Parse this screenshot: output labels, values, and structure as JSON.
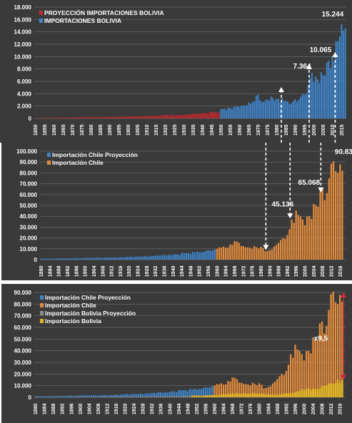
{
  "colors": {
    "background": "#3a3a3a",
    "grid": "#6d6d6d",
    "text": "#ffffff",
    "proyeccion_bolivia": "#c0282d",
    "importaciones_bolivia": "#3f83c8",
    "proyeccion_chile": "#3f83c8",
    "importacion_chile": "#e08a3c",
    "proyeccion_bolivia_p3": "#8c8c8c",
    "importacion_bolivia_p3": "#e3b42a",
    "range_arrow": "#d22a3e"
  },
  "chart_data": [
    {
      "type": "bar",
      "legend_position": "top-left",
      "grid": true,
      "x_range": [
        1850,
        2017
      ],
      "ylim": [
        0,
        18000
      ],
      "y_ticks": [
        "0",
        "2.000",
        "4.000",
        "6.000",
        "8.000",
        "10.000",
        "12.000",
        "14.000",
        "16.000",
        "18.000"
      ],
      "x_ticks": [
        "1850",
        "1855",
        "1860",
        "1865",
        "1870",
        "1875",
        "1880",
        "1885",
        "1890",
        "1895",
        "1900",
        "1905",
        "1910",
        "1915",
        "1920",
        "1925",
        "1930",
        "1935",
        "1940",
        "1945",
        "1950",
        "1955",
        "1960",
        "1965",
        "1970",
        "1975",
        "1980",
        "1985",
        "1990",
        "1995",
        "2000",
        "2005",
        "2010",
        "2015"
      ],
      "series": [
        {
          "name": "PROYECCIÓN IMPORTACIONES BOLIVIA",
          "color_key": "proyeccion_bolivia",
          "points": [
            [
              1850,
              40
            ],
            [
              1900,
              300
            ],
            [
              1930,
              600
            ],
            [
              1949,
              1050
            ]
          ]
        },
        {
          "name": "IMPORTACIONES BOLIVIA",
          "color_key": "importaciones_bolivia",
          "points": [
            [
              1950,
              1500
            ],
            [
              1955,
              1650
            ],
            [
              1960,
              1800
            ],
            [
              1965,
              2600
            ],
            [
              1970,
              3800
            ],
            [
              1972,
              2700
            ],
            [
              1975,
              3100
            ],
            [
              1978,
              3300
            ],
            [
              1980,
              3200
            ],
            [
              1985,
              2900
            ],
            [
              1987,
              2300
            ],
            [
              1990,
              3100
            ],
            [
              1995,
              3800
            ],
            [
              1999,
              7364
            ],
            [
              2002,
              6300
            ],
            [
              2005,
              7000
            ],
            [
              2008,
              9300
            ],
            [
              2010,
              10065
            ],
            [
              2013,
              12500
            ],
            [
              2015,
              15244
            ],
            [
              2016,
              14200
            ],
            [
              2017,
              14600
            ]
          ]
        }
      ],
      "annotations": [
        {
          "text": "15.244",
          "x": 2015,
          "y": 15244
        },
        {
          "text": "10.065",
          "x": 2010,
          "y": 10065
        },
        {
          "text": "7.364",
          "x": 1999,
          "y": 7364
        }
      ],
      "arrows_up_at": [
        1983,
        1998,
        2012
      ]
    },
    {
      "type": "bar",
      "legend_position": "top-left",
      "grid": true,
      "x_range": [
        1880,
        2018
      ],
      "ylim": [
        0,
        100000
      ],
      "y_ticks": [
        "0",
        "10.000",
        "20.000",
        "30.000",
        "40.000",
        "50.000",
        "60.000",
        "70.000",
        "80.000",
        "90.000",
        "100.000"
      ],
      "x_ticks": [
        "1880",
        "1884",
        "1888",
        "1892",
        "1896",
        "1900",
        "1904",
        "1908",
        "1912",
        "1916",
        "1920",
        "1924",
        "1928",
        "1932",
        "1936",
        "1940",
        "1944",
        "1948",
        "1952",
        "1956",
        "1960",
        "1964",
        "1968",
        "1972",
        "1976",
        "1980",
        "1984",
        "1988",
        "1992",
        "1996",
        "2000",
        "2004",
        "2008",
        "2012",
        "2016"
      ],
      "series": [
        {
          "name": "Importación Chile Proyección",
          "color_key": "proyeccion_chile",
          "points": [
            [
              1880,
              800
            ],
            [
              1900,
              1500
            ],
            [
              1920,
              2500
            ],
            [
              1940,
              4500
            ],
            [
              1955,
              8000
            ],
            [
              1959,
              9500
            ]
          ]
        },
        {
          "name": "Importación Chile",
          "color_key": "importacion_chile",
          "points": [
            [
              1960,
              10000
            ],
            [
              1963,
              12000
            ],
            [
              1966,
              14000
            ],
            [
              1968,
              17000
            ],
            [
              1970,
              15500
            ],
            [
              1972,
              12500
            ],
            [
              1975,
              11000
            ],
            [
              1980,
              12000
            ],
            [
              1983,
              8000
            ],
            [
              1986,
              12000
            ],
            [
              1990,
              20000
            ],
            [
              1993,
              28000
            ],
            [
              1996,
              45136
            ],
            [
              1999,
              37000
            ],
            [
              2002,
              40000
            ],
            [
              2005,
              50000
            ],
            [
              2008,
              65068
            ],
            [
              2009,
              55000
            ],
            [
              2011,
              75000
            ],
            [
              2013,
              90834
            ],
            [
              2015,
              80000
            ],
            [
              2017,
              82000
            ]
          ]
        }
      ],
      "annotations": [
        {
          "text": "90.834",
          "x": 2013,
          "y": 90834
        },
        {
          "text": "65.068",
          "x": 2008,
          "y": 65068
        },
        {
          "text": "45.136",
          "x": 1996,
          "y": 45136
        }
      ],
      "arrows_down_at": [
        1986,
        1997,
        2011
      ]
    },
    {
      "type": "bar",
      "legend_position": "top-left",
      "grid": true,
      "x_range": [
        1880,
        2018
      ],
      "ylim": [
        0,
        90000
      ],
      "y_ticks": [
        "0",
        "10.000",
        "20.000",
        "30.000",
        "40.000",
        "50.000",
        "60.000",
        "70.000",
        "80.000",
        "90.000"
      ],
      "x_ticks": [
        "1880",
        "1884",
        "1888",
        "1892",
        "1896",
        "1900",
        "1904",
        "1908",
        "1912",
        "1916",
        "1920",
        "1924",
        "1928",
        "1932",
        "1936",
        "1940",
        "1944",
        "1948",
        "1952",
        "1956",
        "1960",
        "1964",
        "1968",
        "1972",
        "1976",
        "1980",
        "1984",
        "1988",
        "1992",
        "1996",
        "2000",
        "2004",
        "2008",
        "2012",
        "2016"
      ],
      "series": [
        {
          "name": "Importación Chile Proyección",
          "color_key": "proyeccion_chile",
          "points": [
            [
              1880,
              800
            ],
            [
              1900,
              1500
            ],
            [
              1920,
              2500
            ],
            [
              1940,
              4500
            ],
            [
              1955,
              8000
            ],
            [
              1959,
              9500
            ]
          ]
        },
        {
          "name": "Importación Chile",
          "color_key": "importacion_chile",
          "points": [
            [
              1960,
              10000
            ],
            [
              1963,
              12000
            ],
            [
              1966,
              14000
            ],
            [
              1968,
              17000
            ],
            [
              1970,
              15500
            ],
            [
              1972,
              12500
            ],
            [
              1975,
              11000
            ],
            [
              1980,
              12000
            ],
            [
              1983,
              8000
            ],
            [
              1986,
              12000
            ],
            [
              1990,
              20000
            ],
            [
              1993,
              28000
            ],
            [
              1996,
              45136
            ],
            [
              1999,
              37000
            ],
            [
              2002,
              40000
            ],
            [
              2005,
              50000
            ],
            [
              2008,
              65068
            ],
            [
              2009,
              55000
            ],
            [
              2011,
              75000
            ],
            [
              2013,
              90834
            ],
            [
              2015,
              80000
            ],
            [
              2017,
              82000
            ]
          ]
        },
        {
          "name": "Importación Bolivia Proyección",
          "color_key": "proyeccion_bolivia_p3",
          "points": [
            [
              1880,
              150
            ],
            [
              1900,
              300
            ],
            [
              1930,
              600
            ],
            [
              1949,
              1050
            ]
          ]
        },
        {
          "name": "Importación Bolivia",
          "color_key": "importacion_bolivia_p3",
          "points": [
            [
              1950,
              1500
            ],
            [
              1960,
              1800
            ],
            [
              1970,
              3800
            ],
            [
              1980,
              3200
            ],
            [
              1987,
              2300
            ],
            [
              1995,
              3800
            ],
            [
              1999,
              7364
            ],
            [
              2005,
              7000
            ],
            [
              2010,
              10065
            ],
            [
              2015,
              15244
            ],
            [
              2017,
              14600
            ]
          ]
        }
      ],
      "annotations": [
        {
          "text": "x9,5",
          "x": 2008,
          "y": 45000
        }
      ],
      "range_arrow": {
        "x": 2018,
        "y_from": 15000,
        "y_to": 90000
      }
    }
  ]
}
